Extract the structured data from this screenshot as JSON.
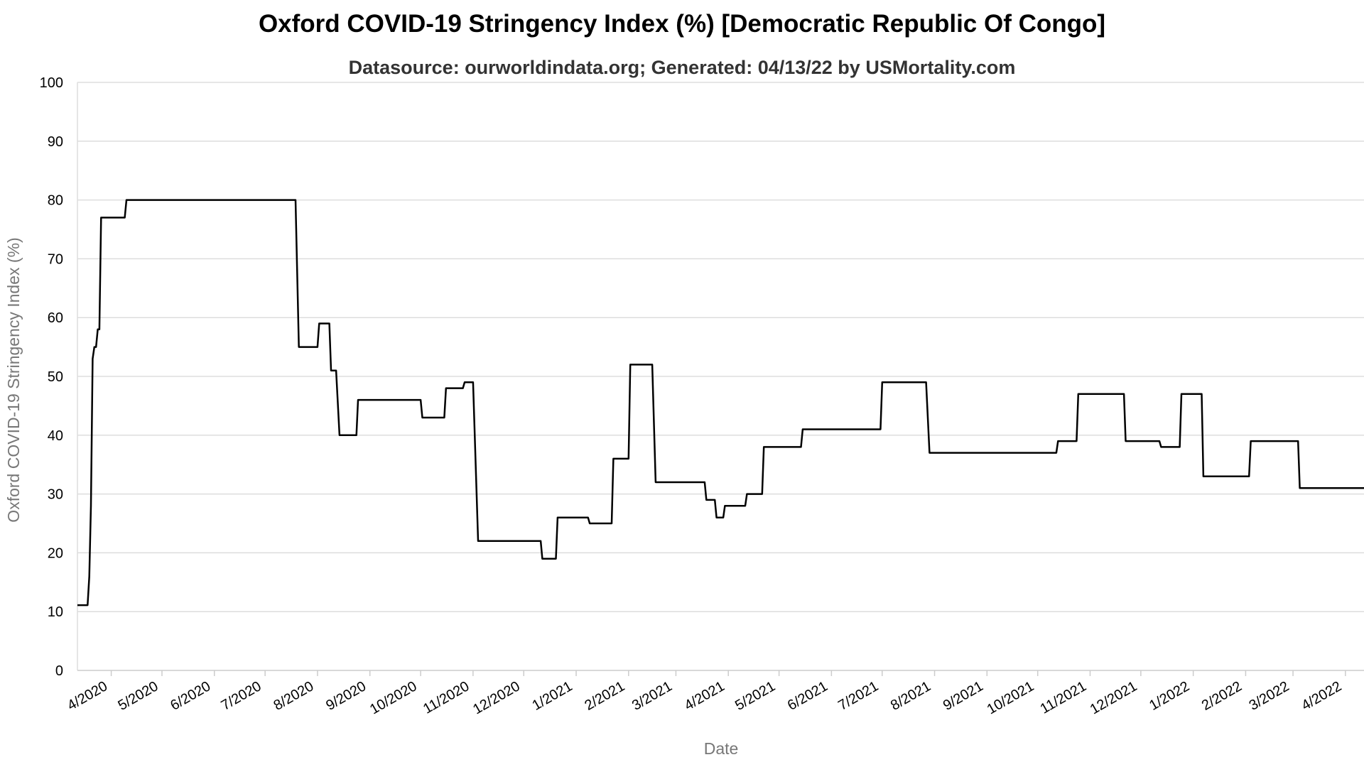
{
  "chart_data": {
    "type": "line",
    "title": "Oxford COVID-19 Stringency Index (%) [Democratic Republic Of Congo]",
    "subtitle": "Datasource: ourworldindata.org; Generated: 04/13/22 by USMortality.com",
    "xlabel": "Date",
    "ylabel": "Oxford COVID-19 Stringency Index (%)",
    "ylim": [
      0,
      100
    ],
    "yticks": [
      0,
      10,
      20,
      30,
      40,
      50,
      60,
      70,
      80,
      90,
      100
    ],
    "xlim": [
      "2020-03-12",
      "2022-04-12"
    ],
    "xticks": [
      {
        "date": "2020-04-01",
        "label": "4/2020"
      },
      {
        "date": "2020-05-01",
        "label": "5/2020"
      },
      {
        "date": "2020-06-01",
        "label": "6/2020"
      },
      {
        "date": "2020-07-01",
        "label": "7/2020"
      },
      {
        "date": "2020-08-01",
        "label": "8/2020"
      },
      {
        "date": "2020-09-01",
        "label": "9/2020"
      },
      {
        "date": "2020-10-01",
        "label": "10/2020"
      },
      {
        "date": "2020-11-01",
        "label": "11/2020"
      },
      {
        "date": "2020-12-01",
        "label": "12/2020"
      },
      {
        "date": "2021-01-01",
        "label": "1/2021"
      },
      {
        "date": "2021-02-01",
        "label": "2/2021"
      },
      {
        "date": "2021-03-01",
        "label": "3/2021"
      },
      {
        "date": "2021-04-01",
        "label": "4/2021"
      },
      {
        "date": "2021-05-01",
        "label": "5/2021"
      },
      {
        "date": "2021-06-01",
        "label": "6/2021"
      },
      {
        "date": "2021-07-01",
        "label": "7/2021"
      },
      {
        "date": "2021-08-01",
        "label": "8/2021"
      },
      {
        "date": "2021-09-01",
        "label": "9/2021"
      },
      {
        "date": "2021-10-01",
        "label": "10/2021"
      },
      {
        "date": "2021-11-01",
        "label": "11/2021"
      },
      {
        "date": "2021-12-01",
        "label": "12/2021"
      },
      {
        "date": "2022-01-01",
        "label": "1/2022"
      },
      {
        "date": "2022-02-01",
        "label": "2/2022"
      },
      {
        "date": "2022-03-01",
        "label": "3/2022"
      },
      {
        "date": "2022-04-01",
        "label": "4/2022"
      }
    ],
    "grid": true,
    "line_color": "#000000",
    "series": [
      {
        "points": [
          [
            "2020-03-12",
            11.1
          ],
          [
            "2020-03-18",
            11.1
          ],
          [
            "2020-03-19",
            16
          ],
          [
            "2020-03-20",
            28
          ],
          [
            "2020-03-21",
            53
          ],
          [
            "2020-03-22",
            55
          ],
          [
            "2020-03-23",
            55
          ],
          [
            "2020-03-24",
            58
          ],
          [
            "2020-03-25",
            58
          ],
          [
            "2020-03-26",
            77
          ],
          [
            "2020-04-09",
            77
          ],
          [
            "2020-04-10",
            80
          ],
          [
            "2020-07-19",
            80
          ],
          [
            "2020-07-21",
            55
          ],
          [
            "2020-08-01",
            55
          ],
          [
            "2020-08-02",
            59
          ],
          [
            "2020-08-08",
            59
          ],
          [
            "2020-08-09",
            51
          ],
          [
            "2020-08-12",
            51
          ],
          [
            "2020-08-14",
            40
          ],
          [
            "2020-08-24",
            40
          ],
          [
            "2020-08-25",
            46
          ],
          [
            "2020-10-01",
            46
          ],
          [
            "2020-10-02",
            43
          ],
          [
            "2020-10-15",
            43
          ],
          [
            "2020-10-16",
            48
          ],
          [
            "2020-10-26",
            48
          ],
          [
            "2020-10-27",
            49
          ],
          [
            "2020-11-01",
            49
          ],
          [
            "2020-11-04",
            22
          ],
          [
            "2020-12-11",
            22
          ],
          [
            "2020-12-12",
            19
          ],
          [
            "2020-12-20",
            19
          ],
          [
            "2020-12-21",
            26
          ],
          [
            "2021-01-08",
            26
          ],
          [
            "2021-01-09",
            25
          ],
          [
            "2021-01-22",
            25
          ],
          [
            "2021-01-23",
            36
          ],
          [
            "2021-02-01",
            36
          ],
          [
            "2021-02-02",
            52
          ],
          [
            "2021-02-15",
            52
          ],
          [
            "2021-02-17",
            32
          ],
          [
            "2021-03-18",
            32
          ],
          [
            "2021-03-19",
            29
          ],
          [
            "2021-03-24",
            29
          ],
          [
            "2021-03-25",
            26
          ],
          [
            "2021-03-29",
            26
          ],
          [
            "2021-03-30",
            28
          ],
          [
            "2021-04-11",
            28
          ],
          [
            "2021-04-12",
            30
          ],
          [
            "2021-04-21",
            30
          ],
          [
            "2021-04-22",
            38
          ],
          [
            "2021-05-14",
            38
          ],
          [
            "2021-05-15",
            41
          ],
          [
            "2021-06-30",
            41
          ],
          [
            "2021-07-01",
            49
          ],
          [
            "2021-07-27",
            49
          ],
          [
            "2021-07-29",
            37
          ],
          [
            "2021-10-12",
            37
          ],
          [
            "2021-10-13",
            39
          ],
          [
            "2021-10-24",
            39
          ],
          [
            "2021-10-25",
            47
          ],
          [
            "2021-11-21",
            47
          ],
          [
            "2021-11-22",
            39
          ],
          [
            "2021-12-12",
            39
          ],
          [
            "2021-12-13",
            38
          ],
          [
            "2021-12-24",
            38
          ],
          [
            "2021-12-25",
            47
          ],
          [
            "2022-01-06",
            47
          ],
          [
            "2022-01-07",
            33
          ],
          [
            "2022-02-03",
            33
          ],
          [
            "2022-02-04",
            39
          ],
          [
            "2022-03-04",
            39
          ],
          [
            "2022-03-05",
            31
          ],
          [
            "2022-04-12",
            31
          ]
        ]
      }
    ]
  }
}
